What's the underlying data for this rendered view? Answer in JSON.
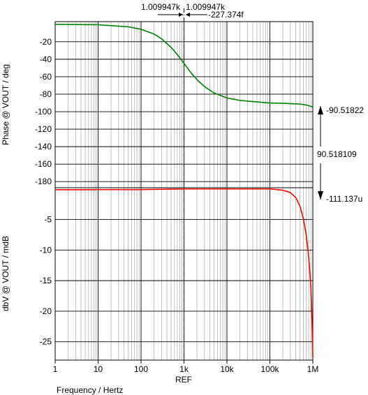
{
  "chart_data": [
    {
      "type": "line",
      "name": "phase",
      "ylabel": "Phase @ VOUT / deg",
      "xscale": "log",
      "xlim": [
        1,
        1000000
      ],
      "ylim": [
        -187,
        3
      ],
      "yticks": [
        -20,
        -40,
        -60,
        -80,
        -100,
        -120,
        -140,
        -160,
        -180
      ],
      "grid": true,
      "series": [
        {
          "color": "#008000",
          "x": [
            1,
            10,
            50,
            100,
            200,
            300,
            500,
            700,
            1000,
            1500,
            2000,
            3000,
            5000,
            10000,
            20000,
            100000,
            200000,
            500000,
            700000,
            1000000
          ],
          "y": [
            -0.06,
            -0.57,
            -2.9,
            -5.7,
            -11.2,
            -16.6,
            -26.4,
            -34.7,
            -44.7,
            -56.4,
            -63.3,
            -71.3,
            -78.6,
            -84.3,
            -87.1,
            -90.1,
            -90.4,
            -91.3,
            -92.3,
            -94.6
          ]
        }
      ]
    },
    {
      "type": "line",
      "name": "magnitude",
      "ylabel": "dbV @ VOUT / mdB",
      "xlabel": "Frequency / Hertz",
      "xscale": "log",
      "xlim": [
        1,
        1000000
      ],
      "ylim": [
        -28,
        0.2
      ],
      "yticks": [
        -5,
        -10,
        -15,
        -20,
        -25
      ],
      "xticks": [
        "1",
        "10",
        "100",
        "1k",
        "10k",
        "100k",
        "1M"
      ],
      "grid": true,
      "series": [
        {
          "color": "#ff0000",
          "x": [
            1,
            100,
            1000,
            10000,
            100000,
            200000,
            300000,
            400000,
            500000,
            600000,
            700000,
            800000,
            900000,
            950000,
            1000000
          ],
          "y": [
            -0.13,
            -0.1,
            0,
            0,
            0,
            -0.2,
            -0.6,
            -1.4,
            -2.8,
            -4.8,
            -7.5,
            -11.0,
            -16.0,
            -20.5,
            -27.5
          ]
        }
      ]
    }
  ],
  "cursor": {
    "x": 1000,
    "top_label_left": "1.009947k",
    "top_label_right": "1.009947k",
    "delta_label": "-227.374f",
    "ref_label": "REF"
  },
  "side_annotation": {
    "upper": "-90.51822",
    "middle": "90.518109",
    "lower": "-111.137u"
  }
}
